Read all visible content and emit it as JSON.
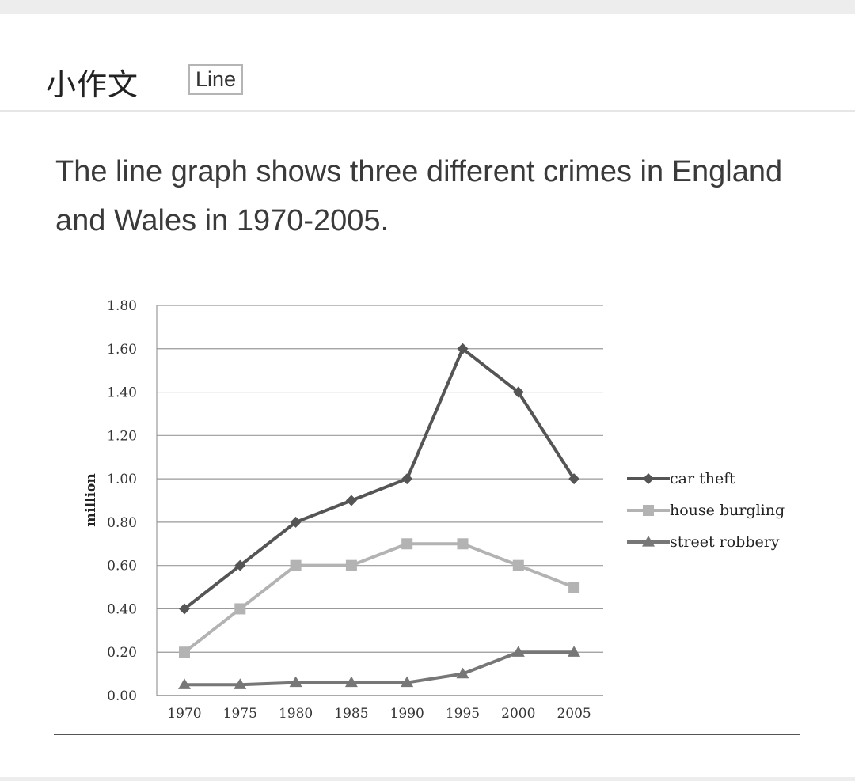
{
  "header": {
    "title": "小作文",
    "tag": "Line"
  },
  "description": "The line graph shows three different crimes in England and Wales in 1970-2005.",
  "colors": {
    "car_theft": "#555555",
    "house_burgling": "#b3b3b3",
    "street_robbery": "#777777"
  },
  "chart_data": {
    "type": "line",
    "title": "",
    "xlabel": "",
    "ylabel": "million",
    "x": [
      "1970",
      "1975",
      "1980",
      "1985",
      "1990",
      "1995",
      "2000",
      "2005"
    ],
    "yticks": [
      "0.00",
      "0.20",
      "0.40",
      "0.60",
      "0.80",
      "1.00",
      "1.20",
      "1.40",
      "1.60",
      "1.80"
    ],
    "ylim": [
      0,
      1.8
    ],
    "grid": true,
    "legend_position": "right",
    "series": [
      {
        "name": "car theft",
        "marker": "diamond",
        "values": [
          0.4,
          0.6,
          0.8,
          0.9,
          1.0,
          1.6,
          1.4,
          1.0
        ]
      },
      {
        "name": "house burgling",
        "marker": "square",
        "values": [
          0.2,
          0.4,
          0.6,
          0.6,
          0.7,
          0.7,
          0.6,
          0.5
        ]
      },
      {
        "name": "street robbery",
        "marker": "triangle",
        "values": [
          0.05,
          0.05,
          0.06,
          0.06,
          0.06,
          0.1,
          0.2,
          0.2
        ]
      }
    ]
  }
}
